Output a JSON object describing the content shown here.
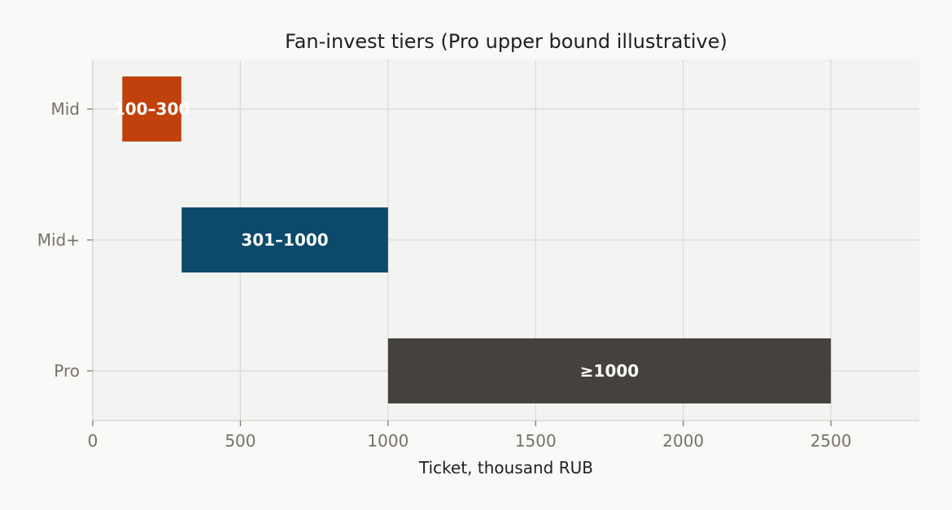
{
  "chart_data": {
    "type": "bar",
    "orientation": "horizontal",
    "title": "Fan-invest tiers (Pro upper bound illustrative)",
    "xlabel": "Ticket, thousand RUB",
    "ylabel": "",
    "xlim": [
      0,
      2800
    ],
    "x_ticks": [
      0,
      500,
      1000,
      1500,
      2000,
      2500
    ],
    "x_tick_labels": [
      "0",
      "500",
      "1000",
      "1500",
      "2000",
      "2500"
    ],
    "grid": true,
    "categories": [
      "Mid",
      "Mid+",
      "Pro"
    ],
    "bars": [
      {
        "category": "Mid",
        "start": 100,
        "end": 300,
        "label": "100–300",
        "color": "#c1410c"
      },
      {
        "category": "Mid+",
        "start": 301,
        "end": 1000,
        "label": "301–1000",
        "color": "#0b4a6b"
      },
      {
        "category": "Pro",
        "start": 1000,
        "end": 2500,
        "label": "≥1000",
        "color": "#45423d"
      }
    ]
  }
}
